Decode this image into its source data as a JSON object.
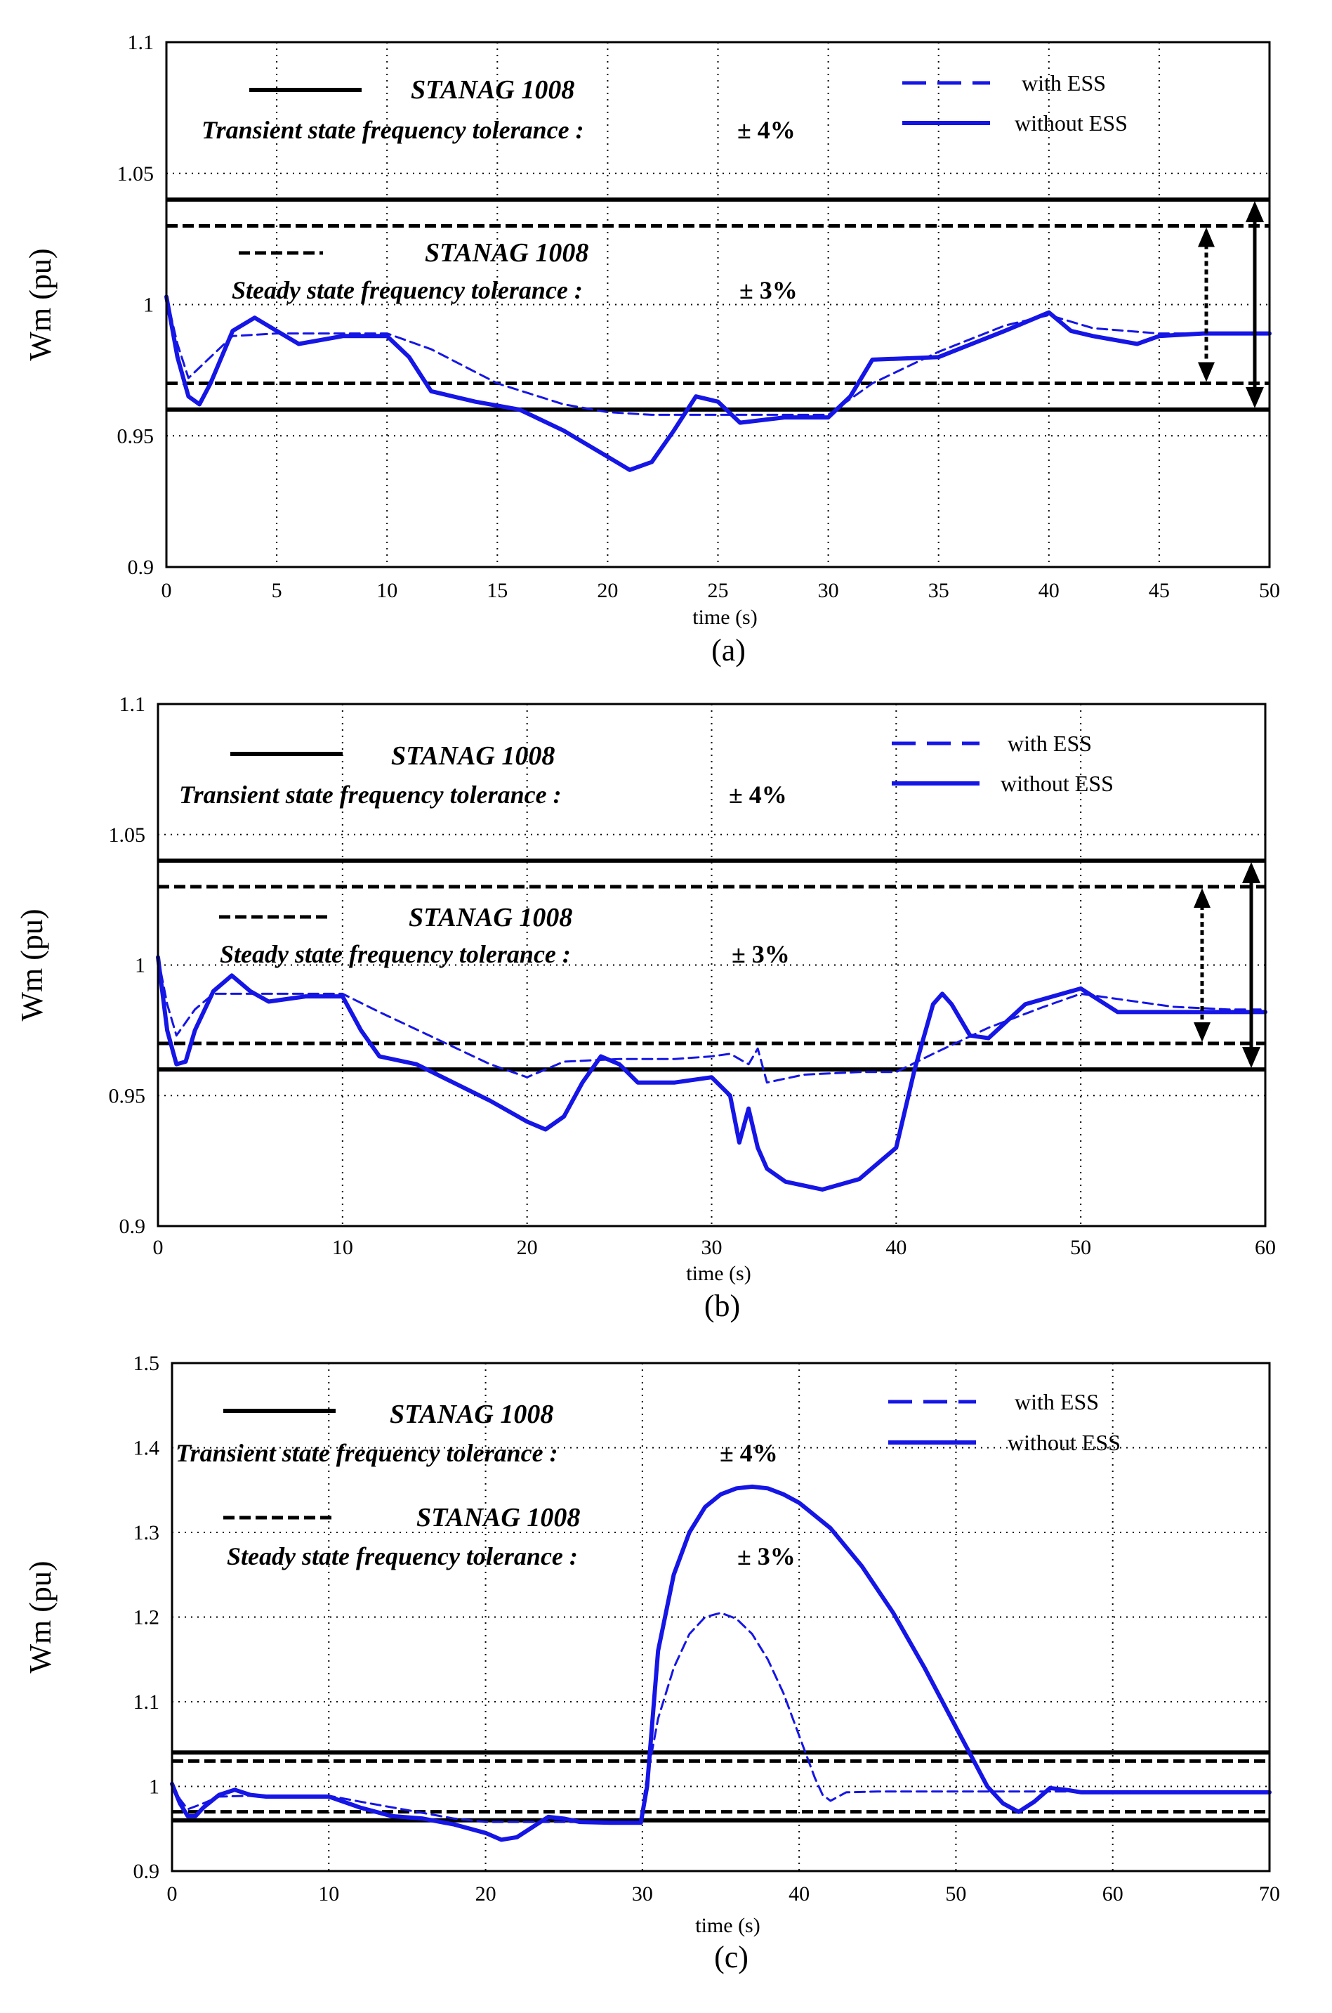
{
  "colors": {
    "series": "#1515e6",
    "limits": "#000000",
    "grid": "#000000"
  },
  "chart_data": [
    {
      "panel_label": "(a)",
      "type": "line",
      "title": "",
      "xlabel": "time (s)",
      "ylabel": "Wm (pu)",
      "xlim": [
        0,
        50
      ],
      "ylim": [
        0.9,
        1.1
      ],
      "xticks": [
        0,
        5,
        10,
        15,
        20,
        25,
        30,
        35,
        40,
        45,
        50
      ],
      "xtick_labels": [
        "0",
        "5",
        "10",
        "15",
        "20",
        "25",
        "30",
        "35",
        "40",
        "45",
        "50"
      ],
      "yticks": [
        0.9,
        0.95,
        1.0,
        1.05,
        1.1
      ],
      "ytick_labels": [
        "0.9",
        "0.95",
        "1",
        "1.05",
        "1.1"
      ],
      "grid": true,
      "limits": {
        "transient": [
          0.96,
          1.04
        ],
        "steady": [
          0.97,
          1.03
        ]
      },
      "annotations": {
        "transient_std": "STANAG 1008",
        "transient_text": "Transient state frequency tolerance :",
        "transient_value": "± 4%",
        "steady_std": "STANAG 1008",
        "steady_text": "Steady state frequency tolerance :",
        "steady_value": "± 3%"
      },
      "legend": [
        "with ESS",
        "without ESS"
      ],
      "series": [
        {
          "name": "with ESS",
          "style": "dashed",
          "x": [
            0,
            0.5,
            1,
            2,
            3,
            5,
            8,
            10,
            12,
            15,
            18,
            20,
            22,
            25,
            28,
            30,
            32,
            35,
            38,
            40,
            42,
            45,
            47,
            50
          ],
          "y": [
            1.003,
            0.985,
            0.972,
            0.98,
            0.988,
            0.989,
            0.989,
            0.989,
            0.983,
            0.97,
            0.962,
            0.959,
            0.958,
            0.958,
            0.958,
            0.958,
            0.97,
            0.982,
            0.992,
            0.996,
            0.991,
            0.989,
            0.989,
            0.989
          ]
        },
        {
          "name": "without ESS",
          "style": "solid",
          "x": [
            0,
            0.5,
            1,
            1.5,
            2,
            3,
            4,
            5,
            6,
            8,
            10,
            11,
            12,
            14,
            16,
            18,
            20,
            21,
            22,
            23,
            24,
            25,
            26,
            28,
            30,
            31,
            32,
            35,
            38,
            40,
            41,
            42,
            44,
            45,
            47,
            50
          ],
          "y": [
            1.003,
            0.98,
            0.965,
            0.962,
            0.97,
            0.99,
            0.995,
            0.99,
            0.985,
            0.988,
            0.988,
            0.98,
            0.967,
            0.963,
            0.96,
            0.952,
            0.942,
            0.937,
            0.94,
            0.952,
            0.965,
            0.963,
            0.955,
            0.957,
            0.957,
            0.965,
            0.979,
            0.98,
            0.99,
            0.997,
            0.99,
            0.988,
            0.985,
            0.988,
            0.989,
            0.989
          ]
        }
      ]
    },
    {
      "panel_label": "(b)",
      "type": "line",
      "title": "",
      "xlabel": "time (s)",
      "ylabel": "Wm (pu)",
      "xlim": [
        0,
        60
      ],
      "ylim": [
        0.9,
        1.1
      ],
      "xticks": [
        0,
        10,
        20,
        30,
        40,
        50,
        60
      ],
      "xtick_labels": [
        "0",
        "10",
        "20",
        "30",
        "40",
        "50",
        "60"
      ],
      "yticks": [
        0.9,
        0.95,
        1.0,
        1.05,
        1.1
      ],
      "ytick_labels": [
        "0.9",
        "0.95",
        "1",
        "1.05",
        "1.1"
      ],
      "grid": true,
      "limits": {
        "transient": [
          0.96,
          1.04
        ],
        "steady": [
          0.97,
          1.03
        ]
      },
      "annotations": {
        "transient_std": "STANAG 1008",
        "transient_text": "Transient state frequency tolerance :",
        "transient_value": "± 4%",
        "steady_std": "STANAG 1008",
        "steady_text": "Steady state frequency tolerance :",
        "steady_value": "± 3%"
      },
      "legend": [
        "with ESS",
        "without ESS"
      ],
      "series": [
        {
          "name": "with ESS",
          "style": "dashed",
          "x": [
            0,
            0.5,
            1,
            2,
            3,
            5,
            8,
            10,
            12,
            15,
            18,
            20,
            22,
            25,
            28,
            30,
            31,
            32,
            32.5,
            33,
            35,
            38,
            40,
            42,
            45,
            48,
            50,
            52,
            55,
            58,
            60
          ],
          "y": [
            1.003,
            0.985,
            0.973,
            0.983,
            0.989,
            0.989,
            0.989,
            0.989,
            0.982,
            0.972,
            0.962,
            0.957,
            0.963,
            0.964,
            0.964,
            0.965,
            0.966,
            0.962,
            0.968,
            0.955,
            0.958,
            0.959,
            0.959,
            0.966,
            0.976,
            0.984,
            0.989,
            0.987,
            0.984,
            0.983,
            0.983
          ]
        },
        {
          "name": "without ESS",
          "style": "solid",
          "x": [
            0,
            0.5,
            1,
            1.5,
            2,
            3,
            4,
            5,
            6,
            8,
            10,
            11,
            12,
            14,
            16,
            18,
            20,
            21,
            22,
            23,
            24,
            25,
            26,
            28,
            30,
            31,
            31.5,
            32,
            32.5,
            33,
            34,
            36,
            38,
            40,
            41,
            42,
            42.5,
            43,
            44,
            45,
            47,
            50,
            52,
            55,
            58,
            60
          ],
          "y": [
            1.003,
            0.975,
            0.962,
            0.963,
            0.975,
            0.99,
            0.996,
            0.99,
            0.986,
            0.988,
            0.988,
            0.975,
            0.965,
            0.962,
            0.955,
            0.948,
            0.94,
            0.937,
            0.942,
            0.955,
            0.965,
            0.962,
            0.955,
            0.955,
            0.957,
            0.95,
            0.932,
            0.945,
            0.93,
            0.922,
            0.917,
            0.914,
            0.918,
            0.93,
            0.96,
            0.985,
            0.989,
            0.985,
            0.973,
            0.972,
            0.985,
            0.991,
            0.982,
            0.982,
            0.982,
            0.982
          ]
        }
      ]
    },
    {
      "panel_label": "(c)",
      "type": "line",
      "title": "",
      "xlabel": "time (s)",
      "ylabel": "Wm (pu)",
      "xlim": [
        0,
        70
      ],
      "ylim": [
        0.9,
        1.5
      ],
      "xticks": [
        0,
        10,
        20,
        30,
        40,
        50,
        60,
        70
      ],
      "xtick_labels": [
        "0",
        "10",
        "20",
        "30",
        "40",
        "50",
        "60",
        "70"
      ],
      "yticks": [
        0.9,
        1.0,
        1.1,
        1.2,
        1.3,
        1.4,
        1.5
      ],
      "ytick_labels": [
        "0.9",
        "1",
        "1.1",
        "1.2",
        "1.3",
        "1.4",
        "1.5"
      ],
      "grid": true,
      "limits": {
        "transient": [
          0.96,
          1.04
        ],
        "steady": [
          0.97,
          1.03
        ]
      },
      "annotations": {
        "transient_std": "STANAG 1008",
        "transient_text": "Transient state frequency tolerance :",
        "transient_value": "± 4%",
        "steady_std": "STANAG 1008",
        "steady_text": "Steady state frequency tolerance :",
        "steady_value": "± 3%"
      },
      "legend": [
        "with ESS",
        "without ESS"
      ],
      "series": [
        {
          "name": "with ESS",
          "style": "dashed",
          "x": [
            0,
            0.5,
            1,
            2,
            3,
            5,
            8,
            10,
            12,
            15,
            18,
            20,
            22,
            25,
            28,
            29.9,
            30.2,
            31,
            32,
            33,
            34,
            35,
            36,
            37,
            38,
            39,
            40,
            41,
            41.5,
            42,
            43,
            45,
            50,
            55,
            60,
            65,
            70
          ],
          "y": [
            1.003,
            0.985,
            0.973,
            0.98,
            0.988,
            0.989,
            0.989,
            0.989,
            0.982,
            0.972,
            0.962,
            0.958,
            0.958,
            0.958,
            0.958,
            0.958,
            1.0,
            1.08,
            1.14,
            1.18,
            1.2,
            1.205,
            1.198,
            1.18,
            1.15,
            1.11,
            1.06,
            1.01,
            0.99,
            0.983,
            0.993,
            0.994,
            0.994,
            0.994,
            0.994,
            0.994,
            0.994
          ]
        },
        {
          "name": "without ESS",
          "style": "solid",
          "x": [
            0,
            0.5,
            1,
            1.5,
            2,
            3,
            4,
            5,
            6,
            8,
            10,
            12,
            14,
            16,
            18,
            20,
            21,
            22,
            23,
            24,
            25,
            26,
            28,
            29.9,
            30.3,
            31,
            32,
            33,
            34,
            35,
            36,
            37,
            38,
            39,
            40,
            42,
            44,
            46,
            48,
            50,
            51,
            52,
            53,
            54,
            55,
            56,
            57,
            58,
            60,
            65,
            70
          ],
          "y": [
            1.003,
            0.98,
            0.965,
            0.965,
            0.975,
            0.99,
            0.996,
            0.99,
            0.988,
            0.988,
            0.988,
            0.975,
            0.965,
            0.962,
            0.955,
            0.945,
            0.937,
            0.94,
            0.952,
            0.964,
            0.962,
            0.958,
            0.957,
            0.957,
            1.0,
            1.16,
            1.25,
            1.3,
            1.33,
            1.345,
            1.352,
            1.354,
            1.352,
            1.345,
            1.335,
            1.305,
            1.26,
            1.205,
            1.14,
            1.07,
            1.035,
            1.0,
            0.98,
            0.97,
            0.982,
            0.998,
            0.996,
            0.993,
            0.993,
            0.993,
            0.993
          ]
        }
      ]
    }
  ]
}
